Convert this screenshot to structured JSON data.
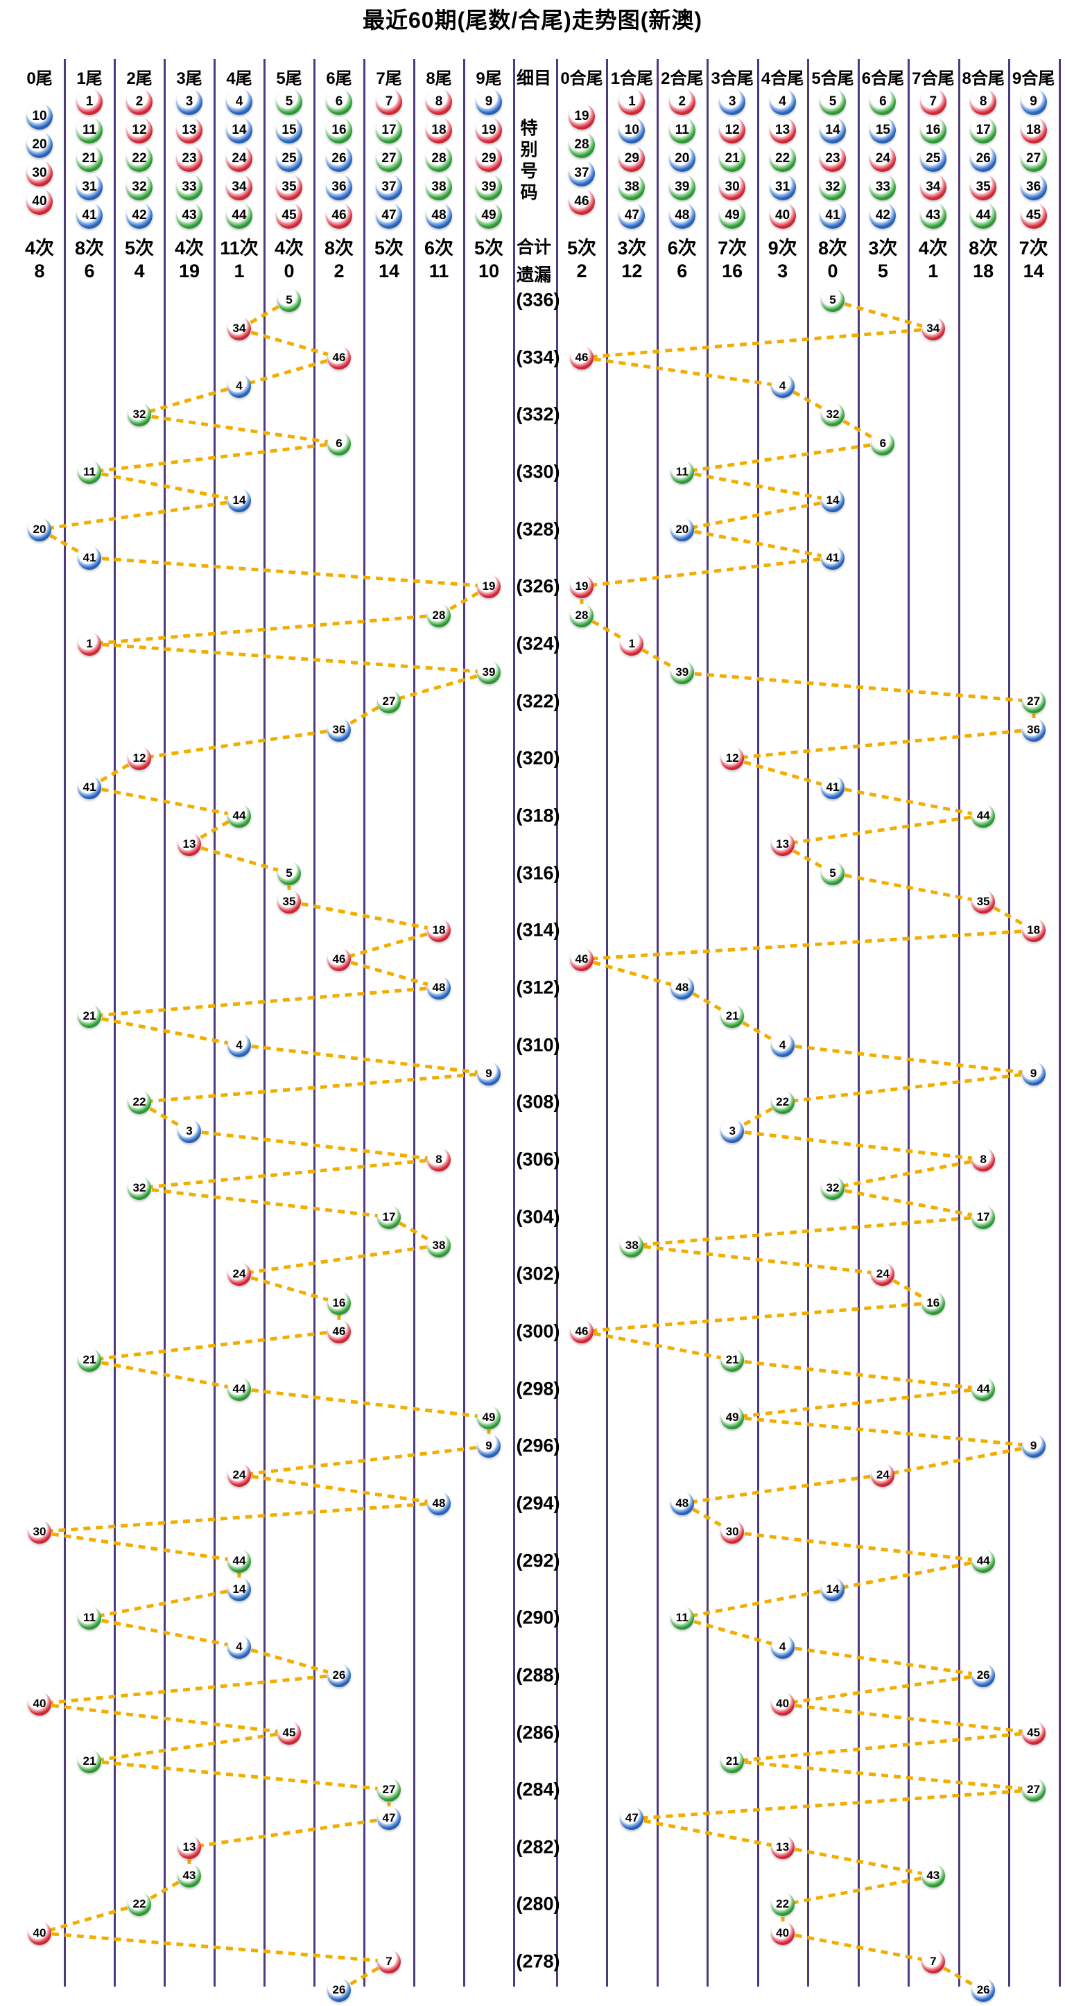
{
  "chart_data": {
    "type": "scatter",
    "title": "最近60期(尾数/合尾)走势图(新澳)",
    "legend_position": "none",
    "grid": true,
    "draws": [
      {
        "period": 336,
        "number": 5
      },
      {
        "period": 335,
        "number": 34
      },
      {
        "period": 334,
        "number": 46
      },
      {
        "period": 333,
        "number": 4
      },
      {
        "period": 332,
        "number": 32
      },
      {
        "period": 331,
        "number": 6
      },
      {
        "period": 330,
        "number": 11
      },
      {
        "period": 329,
        "number": 14
      },
      {
        "period": 328,
        "number": 20
      },
      {
        "period": 327,
        "number": 41
      },
      {
        "period": 326,
        "number": 19
      },
      {
        "period": 325,
        "number": 28
      },
      {
        "period": 324,
        "number": 1
      },
      {
        "period": 323,
        "number": 39
      },
      {
        "period": 322,
        "number": 27
      },
      {
        "period": 321,
        "number": 36
      },
      {
        "period": 320,
        "number": 12
      },
      {
        "period": 319,
        "number": 41
      },
      {
        "period": 318,
        "number": 44
      },
      {
        "period": 317,
        "number": 13
      },
      {
        "period": 316,
        "number": 5
      },
      {
        "period": 315,
        "number": 35
      },
      {
        "period": 314,
        "number": 18
      },
      {
        "period": 313,
        "number": 46
      },
      {
        "period": 312,
        "number": 48
      },
      {
        "period": 311,
        "number": 21
      },
      {
        "period": 310,
        "number": 4
      },
      {
        "period": 309,
        "number": 9
      },
      {
        "period": 308,
        "number": 22
      },
      {
        "period": 307,
        "number": 3
      },
      {
        "period": 306,
        "number": 8
      },
      {
        "period": 305,
        "number": 32
      },
      {
        "period": 304,
        "number": 17
      },
      {
        "period": 303,
        "number": 38
      },
      {
        "period": 302,
        "number": 24
      },
      {
        "period": 301,
        "number": 16
      },
      {
        "period": 300,
        "number": 46
      },
      {
        "period": 299,
        "number": 21
      },
      {
        "period": 298,
        "number": 44
      },
      {
        "period": 297,
        "number": 49
      },
      {
        "period": 296,
        "number": 9
      },
      {
        "period": 295,
        "number": 24
      },
      {
        "period": 294,
        "number": 48
      },
      {
        "period": 293,
        "number": 30
      },
      {
        "period": 292,
        "number": 44
      },
      {
        "period": 291,
        "number": 14
      },
      {
        "period": 290,
        "number": 11
      },
      {
        "period": 289,
        "number": 4
      },
      {
        "period": 288,
        "number": 26
      },
      {
        "period": 287,
        "number": 40
      },
      {
        "period": 286,
        "number": 45
      },
      {
        "period": 285,
        "number": 21
      },
      {
        "period": 284,
        "number": 27
      },
      {
        "period": 283,
        "number": 47
      },
      {
        "period": 282,
        "number": 13
      },
      {
        "period": 281,
        "number": 43
      },
      {
        "period": 280,
        "number": 22
      },
      {
        "period": 279,
        "number": 40
      },
      {
        "period": 278,
        "number": 7
      },
      {
        "period": 277,
        "number": 26
      }
    ]
  },
  "left_header": {
    "columns": [
      {
        "label": "0尾",
        "balls": [
          10,
          20,
          30,
          40
        ],
        "count": "4次",
        "miss": "8"
      },
      {
        "label": "1尾",
        "balls": [
          1,
          11,
          21,
          31,
          41
        ],
        "count": "8次",
        "miss": "6"
      },
      {
        "label": "2尾",
        "balls": [
          2,
          12,
          22,
          32,
          42
        ],
        "count": "5次",
        "miss": "4"
      },
      {
        "label": "3尾",
        "balls": [
          3,
          13,
          23,
          33,
          43
        ],
        "count": "4次",
        "miss": "19"
      },
      {
        "label": "4尾",
        "balls": [
          4,
          14,
          24,
          34,
          44
        ],
        "count": "11次",
        "miss": "1"
      },
      {
        "label": "5尾",
        "balls": [
          5,
          15,
          25,
          35,
          45
        ],
        "count": "4次",
        "miss": "0"
      },
      {
        "label": "6尾",
        "balls": [
          6,
          16,
          26,
          36,
          46
        ],
        "count": "8次",
        "miss": "2"
      },
      {
        "label": "7尾",
        "balls": [
          7,
          17,
          27,
          37,
          47
        ],
        "count": "5次",
        "miss": "14"
      },
      {
        "label": "8尾",
        "balls": [
          8,
          18,
          28,
          38,
          48
        ],
        "count": "6次",
        "miss": "11"
      },
      {
        "label": "9尾",
        "balls": [
          9,
          19,
          29,
          39,
          49
        ],
        "count": "5次",
        "miss": "10"
      }
    ]
  },
  "right_header": {
    "columns": [
      {
        "label": "0合尾",
        "balls": [
          19,
          28,
          37,
          46
        ],
        "count": "5次",
        "miss": "2"
      },
      {
        "label": "1合尾",
        "balls": [
          1,
          10,
          29,
          38,
          47
        ],
        "count": "3次",
        "miss": "12"
      },
      {
        "label": "2合尾",
        "balls": [
          2,
          11,
          20,
          39,
          48
        ],
        "count": "6次",
        "miss": "6"
      },
      {
        "label": "3合尾",
        "balls": [
          3,
          12,
          21,
          30,
          49
        ],
        "count": "7次",
        "miss": "16"
      },
      {
        "label": "4合尾",
        "balls": [
          4,
          13,
          22,
          31,
          40
        ],
        "count": "9次",
        "miss": "3"
      },
      {
        "label": "5合尾",
        "balls": [
          5,
          14,
          23,
          32,
          41
        ],
        "count": "8次",
        "miss": "0"
      },
      {
        "label": "6合尾",
        "balls": [
          6,
          15,
          24,
          33,
          42
        ],
        "count": "3次",
        "miss": "5"
      },
      {
        "label": "7合尾",
        "balls": [
          7,
          16,
          25,
          34,
          43
        ],
        "count": "4次",
        "miss": "1"
      },
      {
        "label": "8合尾",
        "balls": [
          8,
          17,
          26,
          35,
          44
        ],
        "count": "8次",
        "miss": "18"
      },
      {
        "label": "9合尾",
        "balls": [
          9,
          18,
          27,
          36,
          45
        ],
        "count": "7次",
        "miss": "14"
      }
    ]
  },
  "middle": {
    "header": "细目",
    "special_chars": [
      "特",
      "别",
      "号",
      "码"
    ],
    "total_label": "合计",
    "miss_label": "遗漏"
  },
  "colors": {
    "red": "#c41e2f",
    "blue": "#2a66c0",
    "green": "#2f9e38",
    "grid_line": "#4e3a7e",
    "trend_line": "#f2ae00",
    "text": "#000000"
  },
  "ball_color_groups": {
    "red": [
      1,
      2,
      7,
      8,
      12,
      13,
      18,
      19,
      23,
      24,
      29,
      30,
      34,
      35,
      40,
      45,
      46
    ],
    "blue": [
      3,
      4,
      9,
      10,
      14,
      15,
      20,
      25,
      26,
      31,
      36,
      37,
      41,
      42,
      47,
      48
    ],
    "green": [
      5,
      6,
      11,
      16,
      17,
      21,
      22,
      27,
      28,
      32,
      33,
      38,
      39,
      43,
      44,
      49
    ]
  }
}
